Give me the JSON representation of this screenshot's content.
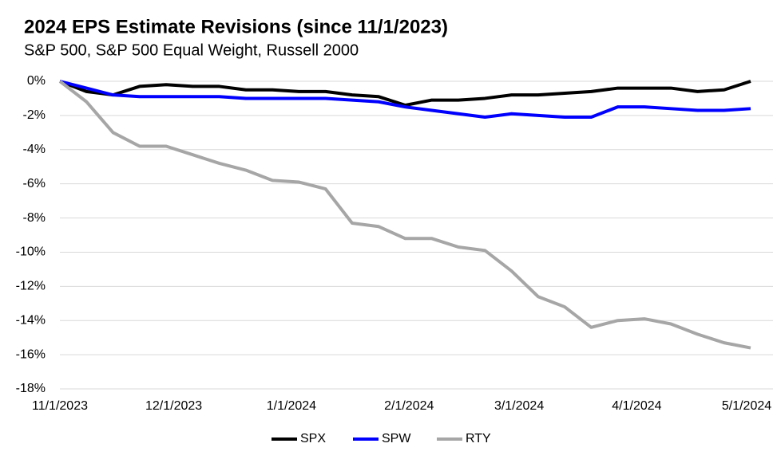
{
  "chart_data": {
    "type": "line",
    "title": "2024 EPS Estimate Revisions (since 11/1/2023)",
    "subtitle": "S&P 500, S&P 500 Equal Weight, Russell 2000",
    "x": [
      "11/1/2023",
      "11/8/2023",
      "11/15/2023",
      "11/22/2023",
      "11/29/2023",
      "12/6/2023",
      "12/13/2023",
      "12/20/2023",
      "12/27/2023",
      "1/3/2024",
      "1/10/2024",
      "1/17/2024",
      "1/24/2024",
      "1/31/2024",
      "2/7/2024",
      "2/14/2024",
      "2/21/2024",
      "2/28/2024",
      "3/6/2024",
      "3/13/2024",
      "3/20/2024",
      "3/27/2024",
      "4/3/2024",
      "4/10/2024",
      "4/17/2024",
      "4/24/2024",
      "5/1/2024"
    ],
    "series": [
      {
        "name": "SPX",
        "color": "#000000",
        "values": [
          0,
          -0.6,
          -0.8,
          -0.3,
          -0.2,
          -0.3,
          -0.3,
          -0.5,
          -0.5,
          -0.6,
          -0.6,
          -0.8,
          -0.9,
          -1.4,
          -1.1,
          -1.1,
          -1.0,
          -0.8,
          -0.8,
          -0.7,
          -0.6,
          -0.4,
          -0.4,
          -0.4,
          -0.6,
          -0.5,
          0
        ]
      },
      {
        "name": "SPW",
        "color": "#0000ff",
        "values": [
          0,
          -0.4,
          -0.8,
          -0.9,
          -0.9,
          -0.9,
          -0.9,
          -1.0,
          -1.0,
          -1.0,
          -1.0,
          -1.1,
          -1.2,
          -1.5,
          -1.7,
          -1.9,
          -2.1,
          -1.9,
          -2.0,
          -2.1,
          -2.1,
          -1.5,
          -1.5,
          -1.6,
          -1.7,
          -1.7,
          -1.6
        ]
      },
      {
        "name": "RTY",
        "color": "#a6a6a6",
        "values": [
          0,
          -1.2,
          -3.0,
          -3.8,
          -3.8,
          -4.3,
          -4.8,
          -5.2,
          -5.8,
          -5.9,
          -6.3,
          -8.3,
          -8.5,
          -9.2,
          -9.2,
          -9.7,
          -9.9,
          -11.1,
          -12.6,
          -13.2,
          -14.4,
          -14.0,
          -13.9,
          -14.2,
          -14.8,
          -15.3,
          -15.6
        ]
      }
    ],
    "xlim": [
      "11/1/2023",
      "5/1/2024"
    ],
    "xticks": [
      "11/1/2023",
      "12/1/2023",
      "1/1/2024",
      "2/1/2024",
      "3/1/2024",
      "4/1/2024",
      "5/1/2024"
    ],
    "ylim": [
      -18,
      0
    ],
    "yticks": [
      {
        "value": 0,
        "label": "0%"
      },
      {
        "value": -2,
        "label": "-2%"
      },
      {
        "value": -4,
        "label": "-4%"
      },
      {
        "value": -6,
        "label": "-6%"
      },
      {
        "value": -8,
        "label": "-8%"
      },
      {
        "value": -10,
        "label": "-10%"
      },
      {
        "value": -12,
        "label": "-12%"
      },
      {
        "value": -14,
        "label": "-14%"
      },
      {
        "value": -16,
        "label": "-16%"
      },
      {
        "value": -18,
        "label": "-18%"
      }
    ],
    "grid": true,
    "legend": "bottom"
  }
}
